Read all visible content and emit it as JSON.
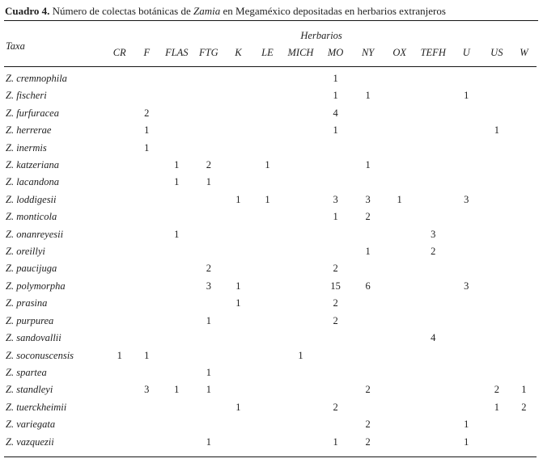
{
  "page": {
    "background_color": "#ffffff",
    "text_color": "#1f1f1f",
    "rule_color": "#151515"
  },
  "title": {
    "label": "Cuadro 4.",
    "rest_before_italic": " Número de colectas botánicas de ",
    "italic_word": "Zamia",
    "rest_after_italic": " en Megaméxico depositadas en herbarios extranjeros"
  },
  "table": {
    "group_header": "Herbarios",
    "taxa_header": "Taxa",
    "columns": [
      "CR",
      "F",
      "FLAS",
      "FTG",
      "K",
      "LE",
      "MICH",
      "MO",
      "NY",
      "OX",
      "TEFH",
      "U",
      "US",
      "W"
    ],
    "rows": [
      {
        "taxon": "Z. cremnophila",
        "counts": {
          "MO": 1
        }
      },
      {
        "taxon": "Z. fischeri",
        "counts": {
          "MO": 1,
          "NY": 1,
          "U": 1
        }
      },
      {
        "taxon": "Z. furfuracea",
        "counts": {
          "F": 2,
          "MO": 4
        }
      },
      {
        "taxon": "Z. herrerae",
        "counts": {
          "F": 1,
          "MO": 1,
          "US": 1
        }
      },
      {
        "taxon": "Z. inermis",
        "counts": {
          "F": 1
        }
      },
      {
        "taxon": "Z. katzeriana",
        "counts": {
          "FLAS": 1,
          "FTG": 2,
          "LE": 1,
          "NY": 1
        }
      },
      {
        "taxon": "Z. lacandona",
        "counts": {
          "FLAS": 1,
          "FTG": 1
        }
      },
      {
        "taxon": "Z. loddigesii",
        "counts": {
          "K": 1,
          "LE": 1,
          "MO": 3,
          "NY": 3,
          "OX": 1,
          "U": 3
        }
      },
      {
        "taxon": "Z. monticola",
        "counts": {
          "MO": 1,
          "NY": 2
        }
      },
      {
        "taxon": "Z. onanreyesii",
        "counts": {
          "FLAS": 1,
          "TEFH": 3
        }
      },
      {
        "taxon": "Z. oreillyi",
        "counts": {
          "NY": 1,
          "TEFH": 2
        }
      },
      {
        "taxon": "Z. paucijuga",
        "counts": {
          "FTG": 2,
          "MO": 2
        }
      },
      {
        "taxon": "Z. polymorpha",
        "counts": {
          "FTG": 3,
          "K": 1,
          "MO": 15,
          "NY": 6,
          "U": 3
        }
      },
      {
        "taxon": "Z. prasina",
        "counts": {
          "K": 1,
          "MO": 2
        }
      },
      {
        "taxon": "Z. purpurea",
        "counts": {
          "FTG": 1,
          "MO": 2
        }
      },
      {
        "taxon": "Z. sandovallii",
        "counts": {
          "TEFH": 4
        }
      },
      {
        "taxon": "Z. soconuscensis",
        "counts": {
          "CR": 1,
          "F": 1,
          "MICH": 1
        }
      },
      {
        "taxon": "Z. spartea",
        "counts": {
          "FTG": 1
        }
      },
      {
        "taxon": "Z. standleyi",
        "counts": {
          "F": 3,
          "FLAS": 1,
          "FTG": 1,
          "NY": 2,
          "US": 2,
          "W": 1
        }
      },
      {
        "taxon": "Z. tuerckheimii",
        "counts": {
          "K": 1,
          "MO": 2,
          "US": 1,
          "W": 2
        }
      },
      {
        "taxon": "Z. variegata",
        "counts": {
          "NY": 2,
          "U": 1
        }
      },
      {
        "taxon": "Z. vazquezii",
        "counts": {
          "FTG": 1,
          "MO": 1,
          "NY": 2,
          "U": 1
        }
      }
    ]
  }
}
